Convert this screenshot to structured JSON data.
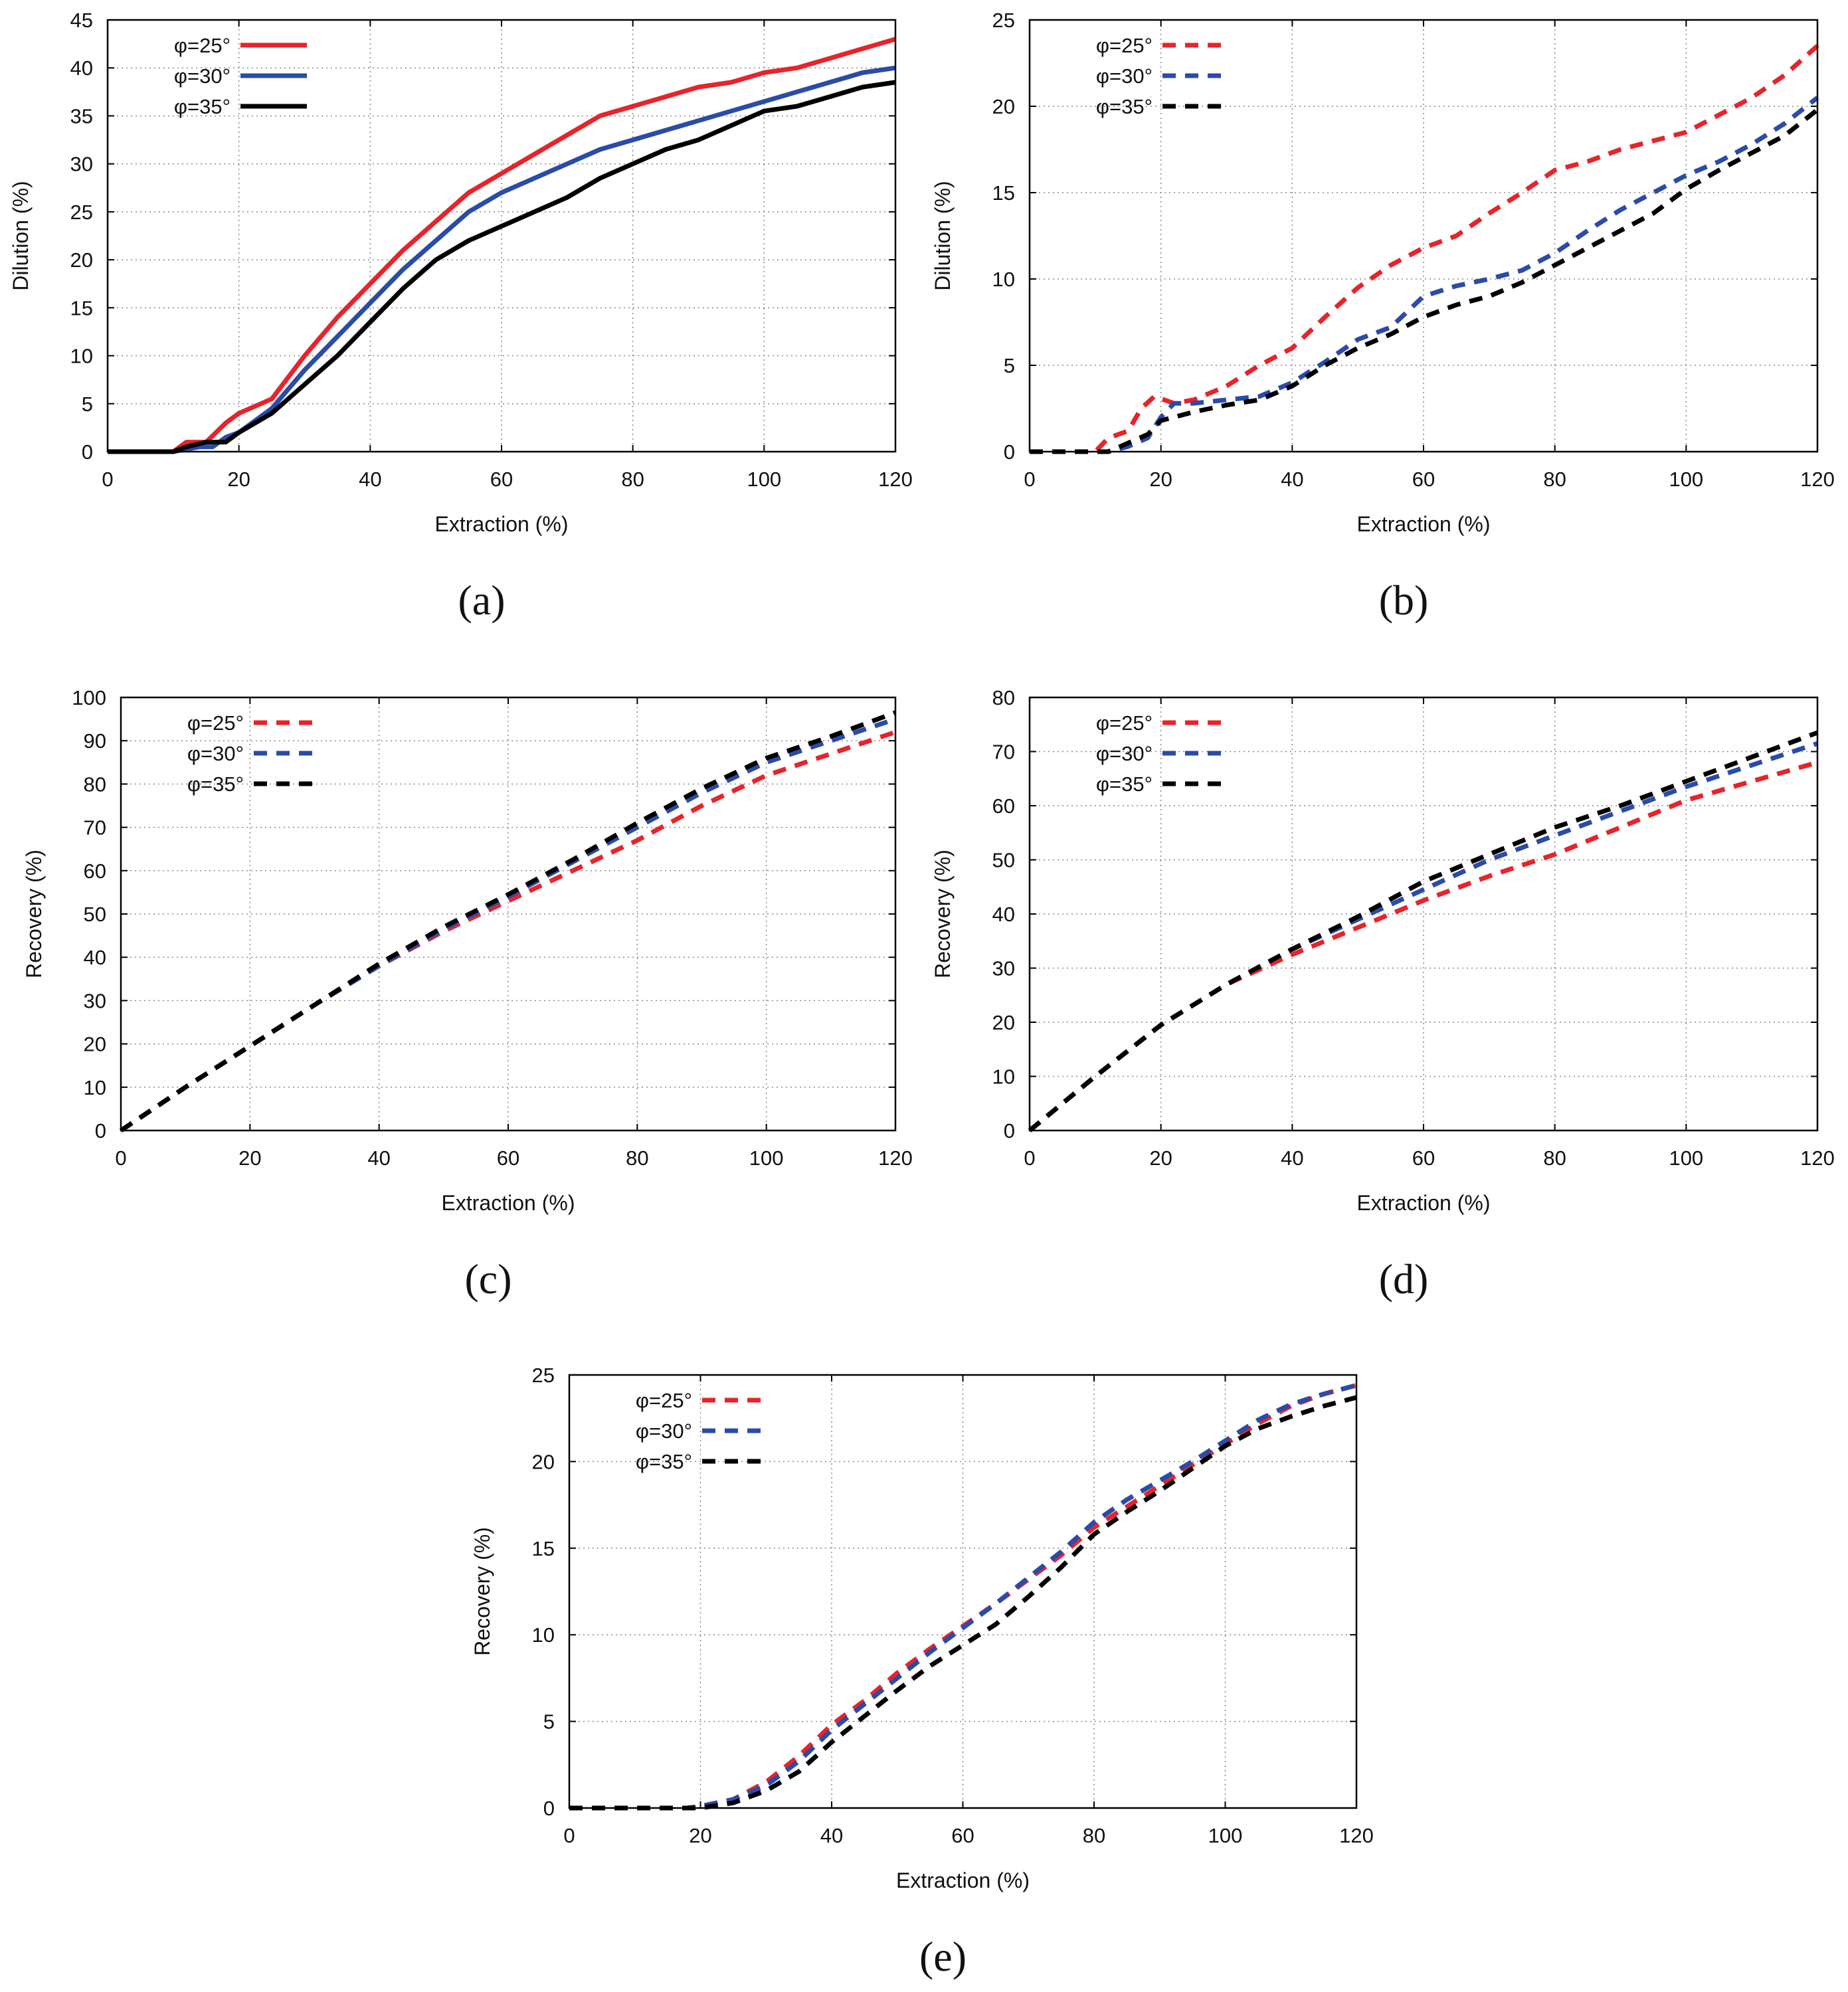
{
  "colors": {
    "red": "#e8232a",
    "blue": "#2a4ba8",
    "black": "#000000",
    "grid": "#888888"
  },
  "chart_data": [
    {
      "id": "a",
      "type": "line",
      "panel_label": "(a)",
      "xlabel": "Extraction (%)",
      "ylabel": "Dilution (%)",
      "xlim": [
        0,
        120
      ],
      "ylim": [
        0,
        45
      ],
      "xticks": [
        0,
        20,
        40,
        60,
        80,
        100,
        120
      ],
      "yticks": [
        0,
        5,
        10,
        15,
        20,
        25,
        30,
        35,
        40,
        45
      ],
      "grid": true,
      "legend_position": "top-left",
      "line_style": "solid",
      "series": [
        {
          "name": "φ=25°",
          "color": "red",
          "x": [
            0,
            5,
            10,
            12,
            15,
            18,
            20,
            25,
            30,
            35,
            40,
            45,
            50,
            55,
            60,
            65,
            70,
            75,
            80,
            85,
            90,
            95,
            100,
            105,
            110,
            115,
            120
          ],
          "y": [
            0,
            0,
            0,
            1,
            1,
            3,
            4,
            5.5,
            10,
            14,
            17.5,
            21,
            24,
            27,
            29,
            31,
            33,
            35,
            36,
            37,
            38,
            38.5,
            39.5,
            40,
            41,
            42,
            43
          ]
        },
        {
          "name": "φ=30°",
          "color": "blue",
          "x": [
            0,
            5,
            10,
            14,
            16,
            18,
            20,
            25,
            30,
            35,
            40,
            45,
            50,
            55,
            60,
            65,
            70,
            75,
            80,
            85,
            90,
            95,
            100,
            105,
            110,
            115,
            120
          ],
          "y": [
            0,
            0,
            0,
            0.5,
            0.5,
            1.5,
            2,
            4.5,
            8.5,
            12,
            15.5,
            19,
            22,
            25,
            27,
            28.5,
            30,
            31.5,
            32.5,
            33.5,
            34.5,
            35.5,
            36.5,
            37.5,
            38.5,
            39.5,
            40
          ]
        },
        {
          "name": "φ=35°",
          "color": "black",
          "x": [
            0,
            5,
            10,
            12,
            15,
            18,
            20,
            25,
            30,
            35,
            40,
            45,
            50,
            55,
            60,
            65,
            70,
            75,
            80,
            85,
            90,
            95,
            100,
            105,
            110,
            115,
            120
          ],
          "y": [
            0,
            0,
            0,
            0.5,
            1,
            1,
            2,
            4,
            7,
            10,
            13.5,
            17,
            20,
            22,
            23.5,
            25,
            26.5,
            28.5,
            30,
            31.5,
            32.5,
            34,
            35.5,
            36,
            37,
            38,
            38.5
          ]
        }
      ]
    },
    {
      "id": "b",
      "type": "line",
      "panel_label": "(b)",
      "xlabel": "Extraction (%)",
      "ylabel": "Dilution (%)",
      "xlim": [
        0,
        120
      ],
      "ylim": [
        0,
        25
      ],
      "xticks": [
        0,
        20,
        40,
        60,
        80,
        100,
        120
      ],
      "yticks": [
        0,
        5,
        10,
        15,
        20,
        25
      ],
      "grid": true,
      "legend_position": "top-left",
      "line_style": "dashed",
      "series": [
        {
          "name": "φ=25°",
          "color": "red",
          "x": [
            0,
            5,
            10,
            12,
            15,
            17,
            19,
            22,
            25,
            30,
            35,
            40,
            45,
            50,
            55,
            60,
            65,
            70,
            75,
            80,
            85,
            90,
            95,
            100,
            105,
            110,
            115,
            120
          ],
          "y": [
            0,
            0,
            0,
            0.8,
            1.2,
            2.5,
            3.2,
            2.8,
            3,
            3.8,
            5,
            6,
            7.8,
            9.5,
            10.8,
            11.8,
            12.5,
            13.8,
            15,
            16.3,
            16.8,
            17.5,
            18,
            18.5,
            19.5,
            20.5,
            21.8,
            23.5
          ]
        },
        {
          "name": "φ=30°",
          "color": "blue",
          "x": [
            0,
            5,
            10,
            12,
            15,
            18,
            20,
            22,
            25,
            30,
            35,
            40,
            45,
            50,
            55,
            60,
            65,
            70,
            75,
            80,
            85,
            90,
            95,
            100,
            105,
            110,
            115,
            120
          ],
          "y": [
            0,
            0,
            0,
            0,
            0.3,
            0.8,
            2,
            2.8,
            2.8,
            3,
            3.2,
            4,
            5.2,
            6.5,
            7.2,
            9,
            9.6,
            10,
            10.5,
            11.5,
            12.8,
            14,
            15,
            16,
            16.8,
            17.8,
            19,
            20.5
          ]
        },
        {
          "name": "φ=35°",
          "color": "black",
          "x": [
            0,
            5,
            10,
            12,
            15,
            18,
            20,
            25,
            30,
            35,
            40,
            45,
            50,
            55,
            60,
            65,
            70,
            75,
            80,
            85,
            90,
            95,
            100,
            105,
            110,
            115,
            120
          ],
          "y": [
            0,
            0,
            0,
            0,
            0.5,
            1,
            1.8,
            2.3,
            2.7,
            3,
            3.8,
            5,
            6,
            6.8,
            7.8,
            8.5,
            9,
            9.8,
            10.8,
            11.8,
            12.8,
            13.8,
            15.2,
            16.3,
            17.3,
            18.3,
            19.8
          ]
        }
      ]
    },
    {
      "id": "c",
      "type": "line",
      "panel_label": "(c)",
      "xlabel": "Extraction (%)",
      "ylabel": "Recovery (%)",
      "xlim": [
        0,
        120
      ],
      "ylim": [
        0,
        100
      ],
      "xticks": [
        0,
        20,
        40,
        60,
        80,
        100,
        120
      ],
      "yticks": [
        0,
        10,
        20,
        30,
        40,
        50,
        60,
        70,
        80,
        90,
        100
      ],
      "grid": true,
      "legend_position": "top-left",
      "line_style": "dashed",
      "series": [
        {
          "name": "φ=25°",
          "color": "red",
          "x": [
            0,
            10,
            20,
            30,
            40,
            50,
            60,
            70,
            80,
            90,
            100,
            110,
            120
          ],
          "y": [
            0,
            10,
            19.5,
            29,
            38,
            46,
            53,
            60,
            67,
            75,
            82,
            87,
            92
          ]
        },
        {
          "name": "φ=30°",
          "color": "blue",
          "x": [
            0,
            10,
            20,
            30,
            40,
            50,
            60,
            70,
            80,
            90,
            100,
            110,
            120
          ],
          "y": [
            0,
            10,
            19.5,
            29,
            38,
            46.5,
            54,
            62,
            70,
            78,
            85,
            90,
            95
          ]
        },
        {
          "name": "φ=35°",
          "color": "black",
          "x": [
            0,
            10,
            20,
            30,
            40,
            50,
            60,
            70,
            80,
            90,
            100,
            110,
            120
          ],
          "y": [
            0,
            10,
            19.5,
            29,
            38.5,
            47,
            54.5,
            62.5,
            71,
            79,
            86,
            91,
            96.5
          ]
        }
      ]
    },
    {
      "id": "d",
      "type": "line",
      "panel_label": "(d)",
      "xlabel": "Extraction (%)",
      "ylabel": "Recovery (%)",
      "xlim": [
        0,
        120
      ],
      "ylim": [
        0,
        80
      ],
      "xticks": [
        0,
        20,
        40,
        60,
        80,
        100,
        120
      ],
      "yticks": [
        0,
        10,
        20,
        30,
        40,
        50,
        60,
        70,
        80
      ],
      "grid": true,
      "legend_position": "top-left",
      "line_style": "dashed",
      "series": [
        {
          "name": "φ=25°",
          "color": "red",
          "x": [
            0,
            10,
            20,
            30,
            40,
            50,
            60,
            70,
            80,
            90,
            100,
            110,
            120
          ],
          "y": [
            0,
            10,
            19.5,
            27,
            32.5,
            37.5,
            42.5,
            47,
            51,
            56,
            61,
            64.5,
            68
          ]
        },
        {
          "name": "φ=30°",
          "color": "blue",
          "x": [
            0,
            10,
            20,
            30,
            40,
            50,
            60,
            70,
            80,
            90,
            100,
            110,
            120
          ],
          "y": [
            0,
            10,
            19.5,
            27,
            33.5,
            39,
            44.5,
            50,
            54.5,
            59,
            63.5,
            67.5,
            71.5
          ]
        },
        {
          "name": "φ=35°",
          "color": "black",
          "x": [
            0,
            10,
            20,
            30,
            40,
            50,
            60,
            70,
            80,
            90,
            100,
            110,
            120
          ],
          "y": [
            0,
            10,
            19.5,
            27,
            33.5,
            39.5,
            46,
            51,
            56,
            60,
            64.5,
            69,
            73.5
          ]
        }
      ]
    },
    {
      "id": "e",
      "type": "line",
      "panel_label": "(e)",
      "xlabel": "Extraction (%)",
      "ylabel": "Recovery (%)",
      "xlim": [
        0,
        120
      ],
      "ylim": [
        0,
        25
      ],
      "xticks": [
        0,
        20,
        40,
        60,
        80,
        100,
        120
      ],
      "yticks": [
        0,
        5,
        10,
        15,
        20,
        25
      ],
      "grid": true,
      "legend_position": "top-left",
      "line_style": "dashed",
      "series": [
        {
          "name": "φ=25°",
          "color": "red",
          "x": [
            0,
            10,
            18,
            20,
            25,
            30,
            35,
            40,
            45,
            50,
            55,
            60,
            65,
            70,
            75,
            80,
            85,
            90,
            95,
            100,
            105,
            110,
            115,
            120
          ],
          "y": [
            0,
            0,
            0,
            0.1,
            0.5,
            1.5,
            3,
            4.8,
            6.2,
            7.8,
            9.2,
            10.5,
            11.8,
            13.2,
            14.6,
            16.2,
            17.4,
            18.6,
            19.8,
            21,
            22.2,
            23.2,
            23.9,
            24.4
          ]
        },
        {
          "name": "φ=30°",
          "color": "blue",
          "x": [
            0,
            10,
            18,
            20,
            25,
            30,
            35,
            40,
            45,
            50,
            55,
            60,
            65,
            70,
            75,
            80,
            85,
            90,
            95,
            100,
            105,
            110,
            115,
            120
          ],
          "y": [
            0,
            0,
            0,
            0.1,
            0.5,
            1.3,
            2.7,
            4.5,
            6,
            7.5,
            9,
            10.4,
            11.8,
            13.3,
            14.8,
            16.5,
            17.8,
            18.9,
            20,
            21.2,
            22.4,
            23.3,
            23.9,
            24.4
          ]
        },
        {
          "name": "φ=35°",
          "color": "black",
          "x": [
            0,
            10,
            18,
            20,
            25,
            30,
            35,
            40,
            45,
            50,
            55,
            60,
            65,
            70,
            75,
            80,
            85,
            90,
            95,
            100,
            105,
            110,
            115,
            120
          ],
          "y": [
            0,
            0,
            0,
            0,
            0.3,
            1,
            2.1,
            3.8,
            5.3,
            6.8,
            8.2,
            9.4,
            10.6,
            12.2,
            13.9,
            15.8,
            17.1,
            18.3,
            19.6,
            20.9,
            21.9,
            22.6,
            23.2,
            23.7
          ]
        }
      ]
    }
  ]
}
